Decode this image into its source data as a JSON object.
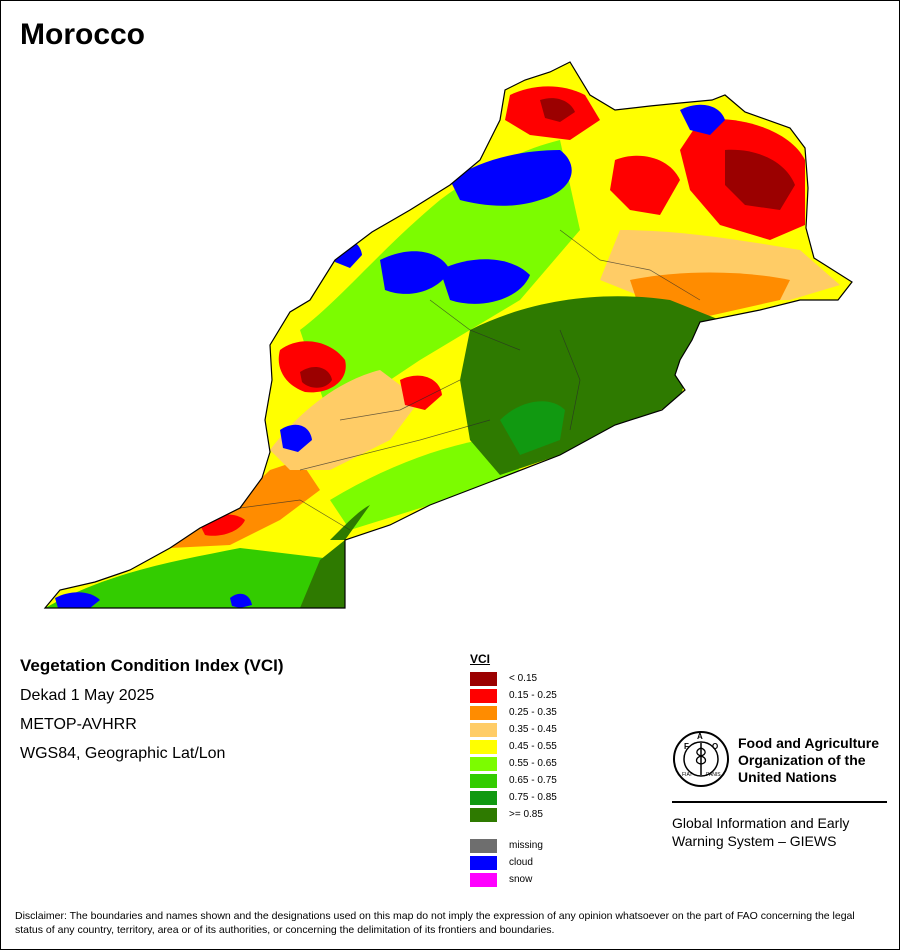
{
  "title": "Morocco",
  "info": {
    "heading": "Vegetation Condition Index (VCI)",
    "dekad": "Dekad 1 May 2025",
    "sensor": "METOP-AVHRR",
    "projection": "WGS84, Geographic Lat/Lon"
  },
  "legend": {
    "title": "VCI",
    "classes": [
      {
        "label": "< 0.15",
        "color": "#9b0000"
      },
      {
        "label": "0.15 - 0.25",
        "color": "#ff0000"
      },
      {
        "label": "0.25 - 0.35",
        "color": "#ff8c00"
      },
      {
        "label": "0.35 - 0.45",
        "color": "#ffcc66"
      },
      {
        "label": "0.45 - 0.55",
        "color": "#ffff00"
      },
      {
        "label": "0.55 - 0.65",
        "color": "#7cfc00"
      },
      {
        "label": "0.65 - 0.75",
        "color": "#33cc00"
      },
      {
        "label": "0.75 - 0.85",
        "color": "#119911"
      },
      {
        "label": ">= 0.85",
        "color": "#2e7a00"
      }
    ],
    "other": [
      {
        "label": "missing",
        "color": "#6e6e6e"
      },
      {
        "label": "cloud",
        "color": "#0000ff"
      },
      {
        "label": "snow",
        "color": "#ff00ff"
      }
    ]
  },
  "logo": {
    "org_line1": "Food and Agriculture",
    "org_line2": "Organization of the",
    "org_line3": "United Nations",
    "giews_line1": "Global Information and Early",
    "giews_line2": "Warning System – GIEWS",
    "seal_letters": "FAO",
    "seal_motto": "FIAT PANIS"
  },
  "disclaimer": "Disclaimer: The boundaries and names shown and the designations used on this map do not imply the expression of any opinion whatsoever on the part of FAO concerning the legal status of any country, territory, area or of its authorities, or concerning the delimitation of its frontiers and boundaries."
}
